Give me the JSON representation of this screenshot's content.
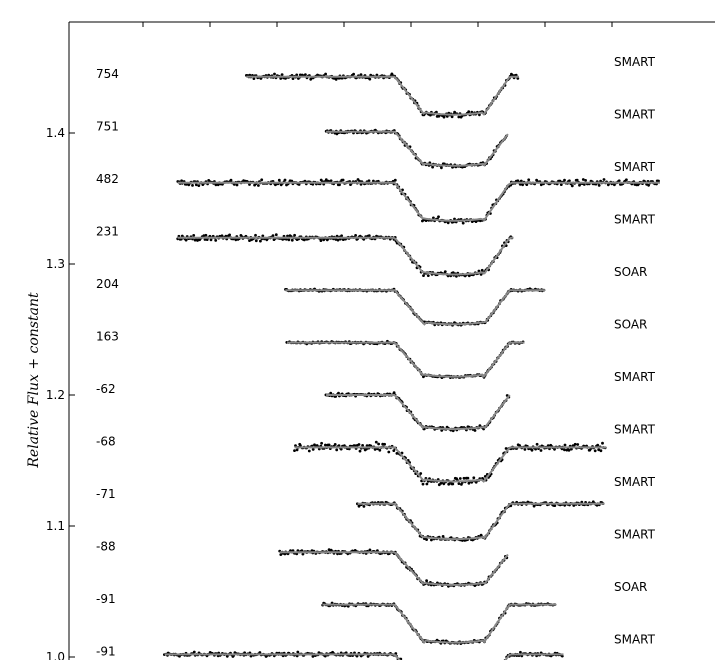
{
  "chart_data": {
    "type": "scatter",
    "ylabel": "Relative Flux + constant",
    "ylim": [
      1.0,
      1.475
    ],
    "yticks": [
      "1.0",
      "1.1",
      "1.2",
      "1.3",
      "1.4"
    ],
    "xticks_shown": false,
    "colors": {
      "points": "#000000",
      "model": "#888888",
      "axes": "#000000"
    },
    "series": [
      {
        "epoch": "754",
        "instrument": "SMART",
        "baseline": 1.443,
        "depth": 0.029,
        "t_start": -0.04,
        "t_end": 0.107
      },
      {
        "epoch": "751",
        "instrument": "SMART",
        "baseline": 1.401,
        "depth": 0.026,
        "t_start": 0.003,
        "t_end": 0.101
      },
      {
        "epoch": "482",
        "instrument": "SMART",
        "baseline": 1.362,
        "depth": 0.029,
        "t_start": -0.077,
        "t_end": 0.183
      },
      {
        "epoch": "231",
        "instrument": "SMART",
        "baseline": 1.32,
        "depth": 0.028,
        "t_start": -0.077,
        "t_end": 0.104
      },
      {
        "epoch": "204",
        "instrument": "SOAR",
        "baseline": 1.28,
        "depth": 0.026,
        "t_start": -0.019,
        "t_end": 0.121
      },
      {
        "epoch": "163",
        "instrument": "SOAR",
        "baseline": 1.24,
        "depth": 0.026,
        "t_start": -0.018,
        "t_end": 0.11
      },
      {
        "epoch": "-62",
        "instrument": "SMART",
        "baseline": 1.2,
        "depth": 0.026,
        "t_start": 0.003,
        "t_end": 0.102
      },
      {
        "epoch": "-68",
        "instrument": "SMART",
        "baseline": 1.16,
        "depth": 0.026,
        "t_start": -0.014,
        "t_end": 0.154
      },
      {
        "epoch": "-71",
        "instrument": "SMART",
        "baseline": 1.117,
        "depth": 0.027,
        "t_start": 0.02,
        "t_end": 0.153
      },
      {
        "epoch": "-88",
        "instrument": "SMART",
        "baseline": 1.08,
        "depth": 0.025,
        "t_start": -0.022,
        "t_end": 0.101
      },
      {
        "epoch": "-91",
        "instrument": "SOAR",
        "baseline": 1.04,
        "depth": 0.029,
        "t_start": 0.001,
        "t_end": 0.127
      },
      {
        "epoch": "-91",
        "instrument": "SMART",
        "baseline": 1.002,
        "depth": 0.027,
        "t_start": -0.084,
        "t_end": 0.131
      }
    ],
    "transit": {
      "ingress_start": 0.04,
      "ingress_end": 0.056,
      "egress_start": 0.088,
      "egress_end": 0.102
    },
    "xlim": [
      -0.1,
      0.186
    ]
  }
}
